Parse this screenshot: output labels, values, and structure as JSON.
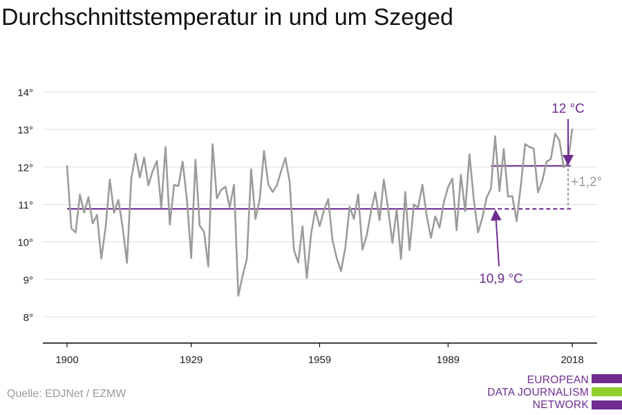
{
  "title": "Durchschnittstemperatur in und um Szeged",
  "source": "Quelle: EDJNet / EZMW",
  "logo": {
    "line1": "EUROPEAN",
    "line2": "DATA JOURNALISM",
    "line3": "NETWORK"
  },
  "colors": {
    "series": "#9b9b9b",
    "accent": "#6f2c91",
    "logo_green": "#8fce2d",
    "grid": "#dddddd",
    "axis": "#000000"
  },
  "chart_data": {
    "type": "line",
    "title": "Durchschnittstemperatur in und um Szeged",
    "ylim": [
      7.3,
      14.2
    ],
    "xlim": [
      1900,
      2018
    ],
    "y_ticks": [
      {
        "v": 8,
        "label": "8°"
      },
      {
        "v": 9,
        "label": "9°"
      },
      {
        "v": 10,
        "label": "10°"
      },
      {
        "v": 11,
        "label": "11°"
      },
      {
        "v": 12,
        "label": "12°"
      },
      {
        "v": 13,
        "label": "13°"
      },
      {
        "v": 14,
        "label": "14°"
      }
    ],
    "x_ticks": [
      {
        "v": 1900,
        "label": "1900"
      },
      {
        "v": 1929,
        "label": "1929"
      },
      {
        "v": 1959,
        "label": "1959"
      },
      {
        "v": 1989,
        "label": "1989"
      },
      {
        "v": 2018,
        "label": "2018"
      }
    ],
    "grid": true,
    "series": [
      {
        "x": [
          1900,
          1901,
          1902,
          1903,
          1904,
          1905,
          1906,
          1907,
          1908,
          1909,
          1910,
          1911,
          1912,
          1913,
          1914,
          1915,
          1916,
          1917,
          1918,
          1919,
          1920,
          1921,
          1922,
          1923,
          1924,
          1925,
          1926,
          1927,
          1928,
          1929,
          1930,
          1931,
          1932,
          1933,
          1934,
          1935,
          1936,
          1937,
          1938,
          1939,
          1940,
          1941,
          1942,
          1943,
          1944,
          1945,
          1946,
          1947,
          1948,
          1949,
          1950,
          1951,
          1952,
          1953,
          1954,
          1955,
          1956,
          1957,
          1958,
          1959,
          1960,
          1961,
          1962,
          1963,
          1964,
          1965,
          1966,
          1967,
          1968,
          1969,
          1970,
          1971,
          1972,
          1973,
          1974,
          1975,
          1976,
          1977,
          1978,
          1979,
          1980,
          1981,
          1982,
          1983,
          1984,
          1985,
          1986,
          1987,
          1988,
          1989,
          1990,
          1991,
          1992,
          1993,
          1994,
          1995,
          1996,
          1997,
          1998,
          1999,
          2000,
          2001,
          2002,
          2003,
          2004,
          2005,
          2006,
          2007,
          2008,
          2009,
          2010,
          2011,
          2012,
          2013,
          2014,
          2015,
          2016,
          2017,
          2018
        ],
        "values": [
          12.04,
          10.36,
          10.25,
          11.26,
          10.78,
          11.19,
          10.49,
          10.72,
          9.55,
          10.39,
          11.66,
          10.78,
          11.12,
          10.38,
          9.44,
          11.68,
          12.35,
          11.72,
          12.25,
          11.51,
          11.89,
          12.16,
          10.91,
          12.53,
          10.46,
          11.52,
          11.49,
          12.14,
          11.12,
          9.57,
          12.19,
          10.43,
          10.27,
          9.34,
          12.61,
          11.16,
          11.39,
          11.47,
          10.92,
          11.52,
          8.56,
          9.09,
          9.55,
          11.94,
          10.61,
          11.13,
          12.43,
          11.53,
          11.33,
          11.51,
          11.88,
          12.24,
          11.61,
          9.78,
          9.45,
          10.42,
          9.03,
          10.21,
          10.86,
          10.42,
          10.84,
          11.14,
          10.05,
          9.56,
          9.22,
          9.85,
          10.94,
          10.61,
          11.27,
          9.79,
          10.17,
          10.81,
          11.32,
          10.58,
          11.66,
          10.88,
          9.97,
          10.86,
          9.54,
          11.33,
          9.78,
          11.0,
          10.91,
          11.52,
          10.69,
          10.11,
          10.68,
          10.38,
          11.06,
          11.46,
          11.69,
          10.31,
          11.79,
          10.82,
          12.34,
          11.13,
          10.25,
          10.64,
          11.18,
          11.42,
          12.82,
          11.35,
          12.48,
          11.21,
          11.22,
          10.55,
          11.52,
          12.61,
          12.53,
          12.49,
          11.32,
          11.62,
          12.14,
          12.21,
          12.89,
          12.71,
          11.99,
          12.12,
          13.02
        ]
      }
    ],
    "reference_lines": [
      {
        "label": "10,9 °C",
        "value": 10.88,
        "from": 1900,
        "to": 2018
      },
      {
        "label": "12 °C",
        "value": 12.03,
        "from": 1999,
        "to": 2018
      }
    ],
    "annotations": {
      "difference": "+1,2°"
    }
  }
}
